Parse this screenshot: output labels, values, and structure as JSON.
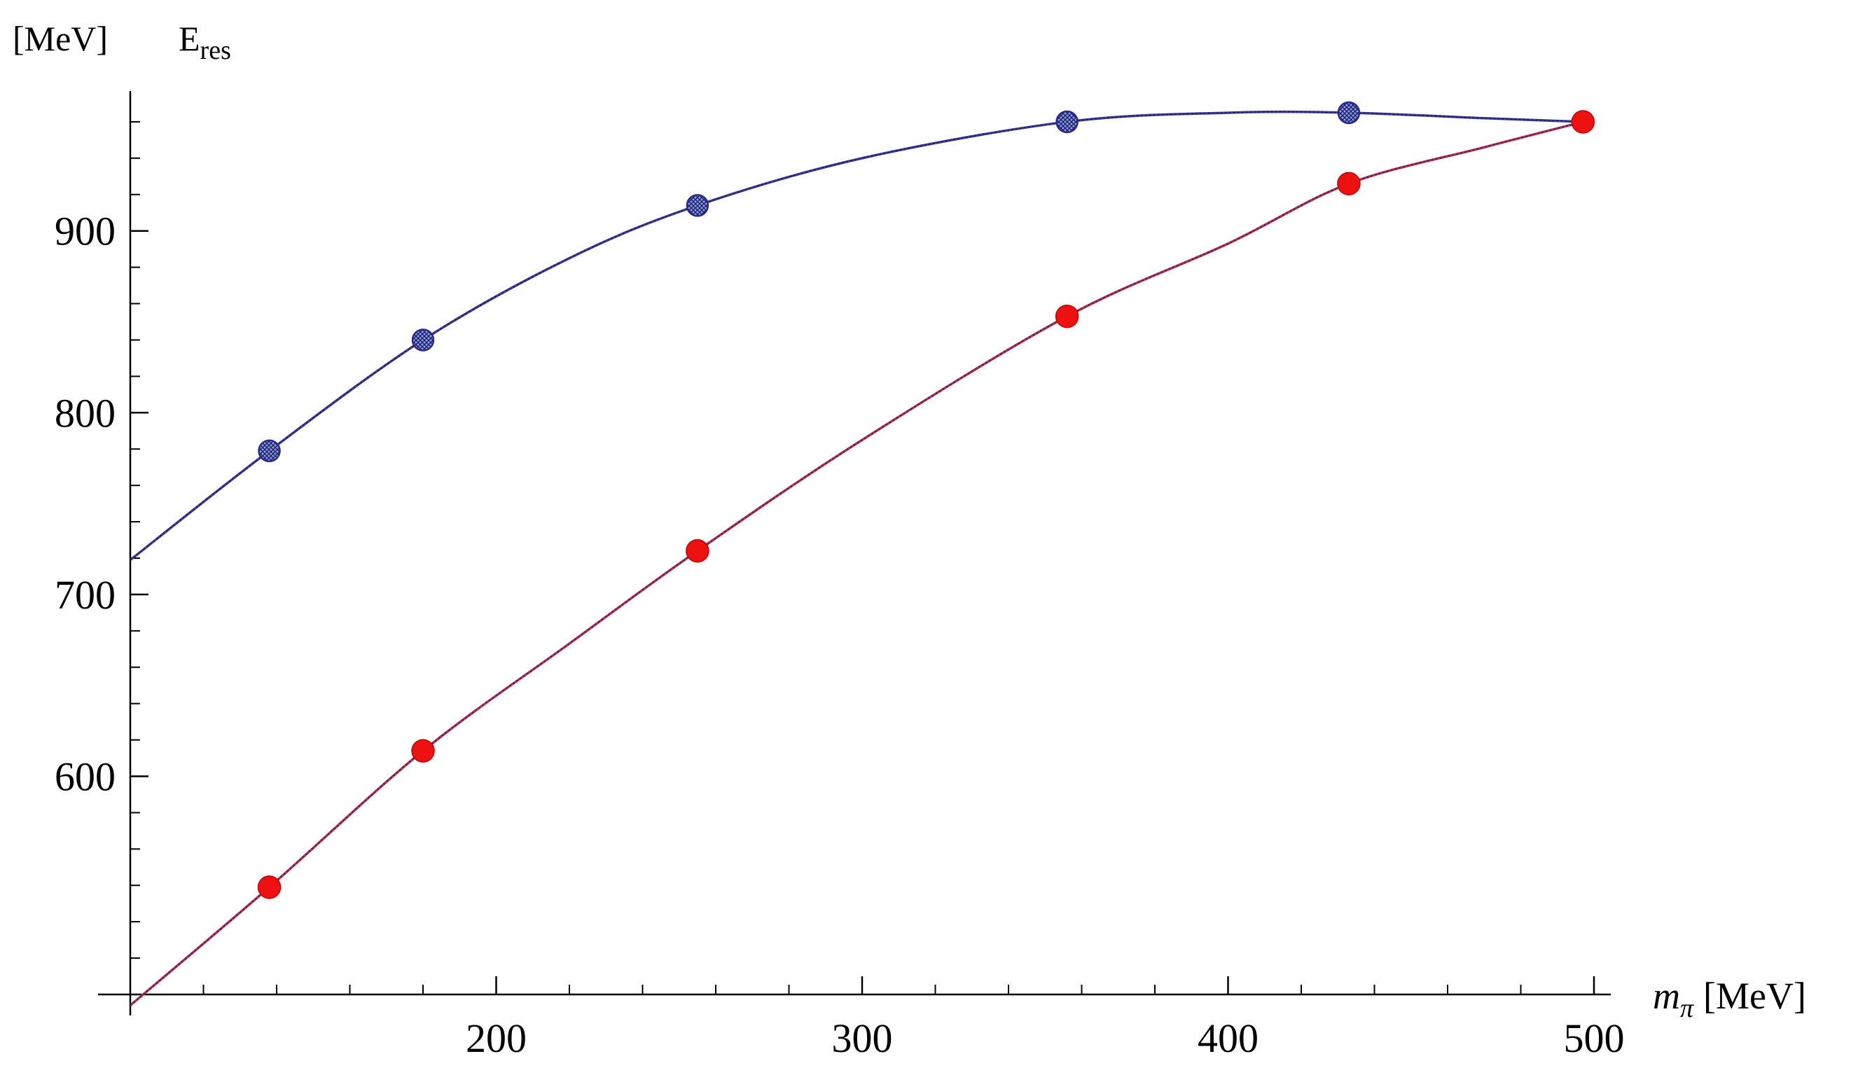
{
  "chart_data": {
    "type": "line",
    "title": "",
    "y_unit_label": "[MeV]",
    "ylabel": "E",
    "ylabel_sub": "res",
    "xlabel": "m",
    "xlabel_sub": "π",
    "xlabel_unit": "[MeV]",
    "xlim": [
      100,
      500
    ],
    "ylim": [
      480,
      975
    ],
    "x_ticks_major": [
      200,
      300,
      400,
      500
    ],
    "x_tick_labels": [
      "200",
      "300",
      "400",
      "500"
    ],
    "x_minor_step": 20,
    "y_ticks_major": [
      600,
      700,
      800,
      900
    ],
    "y_tick_labels": [
      "600",
      "700",
      "800",
      "900"
    ],
    "y_minor_step": 20,
    "grid": false,
    "legend": "none",
    "series": [
      {
        "marker_color": "#2a2a8c",
        "marker_style": "hatched",
        "curve_color": "#3a3aa0",
        "points": [
          {
            "x": 138,
            "y": 779
          },
          {
            "x": 180,
            "y": 840
          },
          {
            "x": 255,
            "y": 914
          },
          {
            "x": 356,
            "y": 960
          },
          {
            "x": 433,
            "y": 965
          },
          {
            "x": 497,
            "y": 960
          }
        ],
        "curve": [
          {
            "x": 100,
            "y": 719
          },
          {
            "x": 138,
            "y": 779
          },
          {
            "x": 180,
            "y": 840
          },
          {
            "x": 220,
            "y": 885
          },
          {
            "x": 255,
            "y": 914
          },
          {
            "x": 300,
            "y": 940
          },
          {
            "x": 356,
            "y": 960
          },
          {
            "x": 400,
            "y": 965
          },
          {
            "x": 433,
            "y": 965
          },
          {
            "x": 470,
            "y": 962
          },
          {
            "x": 497,
            "y": 960
          }
        ]
      },
      {
        "marker_color": "#ee1111",
        "marker_style": "solid",
        "curve_color": "#b03060",
        "points": [
          {
            "x": 138,
            "y": 539
          },
          {
            "x": 180,
            "y": 614
          },
          {
            "x": 255,
            "y": 724
          },
          {
            "x": 356,
            "y": 853
          },
          {
            "x": 433,
            "y": 926
          },
          {
            "x": 497,
            "y": 960
          }
        ],
        "curve": [
          {
            "x": 100,
            "y": 474
          },
          {
            "x": 138,
            "y": 539
          },
          {
            "x": 180,
            "y": 614
          },
          {
            "x": 220,
            "y": 673
          },
          {
            "x": 255,
            "y": 724
          },
          {
            "x": 300,
            "y": 785
          },
          {
            "x": 356,
            "y": 853
          },
          {
            "x": 400,
            "y": 893
          },
          {
            "x": 433,
            "y": 926
          },
          {
            "x": 470,
            "y": 946
          },
          {
            "x": 497,
            "y": 960
          }
        ]
      }
    ]
  }
}
